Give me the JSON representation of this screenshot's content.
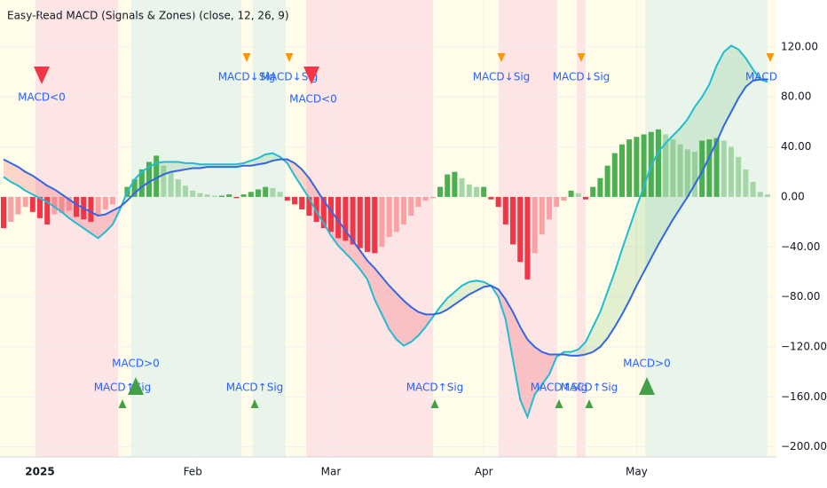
{
  "chart_data": {
    "type": "macd",
    "title": "Easy-Read MACD (Signals & Zones) (close, 12, 26, 9)",
    "categories": [
      null,
      null,
      null,
      null,
      null,
      "2025",
      null,
      null,
      null,
      null,
      null,
      null,
      null,
      null,
      null,
      null,
      null,
      null,
      null,
      null,
      null,
      null,
      null,
      null,
      null,
      null,
      "Feb",
      null,
      null,
      null,
      null,
      null,
      null,
      null,
      null,
      null,
      null,
      null,
      null,
      null,
      null,
      null,
      null,
      null,
      null,
      "Mar",
      null,
      null,
      null,
      null,
      null,
      null,
      null,
      null,
      null,
      null,
      null,
      null,
      null,
      null,
      null,
      null,
      null,
      null,
      null,
      null,
      "Apr",
      null,
      null,
      null,
      null,
      null,
      null,
      null,
      null,
      null,
      null,
      null,
      null,
      null,
      null,
      null,
      null,
      null,
      null,
      null,
      null,
      "May",
      null,
      null,
      null,
      null,
      null,
      null,
      null,
      null,
      null,
      null,
      null,
      null,
      null,
      null,
      null,
      null,
      null,
      null
    ],
    "histogram": [
      -25,
      -20,
      -14,
      -8,
      -12,
      -17,
      -22,
      -14,
      -13,
      -11,
      -16,
      -18,
      -20,
      -15,
      -10,
      -6,
      0,
      8,
      14,
      22,
      28,
      33,
      25,
      20,
      14,
      9,
      5,
      3,
      2,
      1,
      1,
      2,
      -1,
      2,
      4,
      6,
      8,
      7,
      4,
      -3,
      -6,
      -10,
      -15,
      -20,
      -25,
      -28,
      -33,
      -35,
      -38,
      -41,
      -44,
      -45,
      -40,
      -32,
      -28,
      -22,
      -15,
      -8,
      -3,
      -1,
      8,
      18,
      20,
      15,
      10,
      8,
      8,
      -2,
      -8,
      -22,
      -38,
      -52,
      -66,
      -45,
      -30,
      -18,
      -8,
      -3,
      5,
      3,
      -2,
      8,
      15,
      25,
      35,
      42,
      46,
      48,
      50,
      52,
      54,
      50,
      46,
      42,
      38,
      36,
      45,
      46,
      47,
      45,
      40,
      32,
      22,
      12,
      4,
      2
    ],
    "histogram_colors": [
      "#4caf50",
      "#a5d6a7",
      "#f23645",
      "#faa1a4"
    ],
    "series": [
      {
        "color": "#22bcd2",
        "values": [
          16,
          12,
          9,
          5,
          2,
          -1,
          -4,
          -8,
          -12,
          -17,
          -21,
          -25,
          -29,
          -33,
          -28,
          -22,
          -10,
          4,
          14,
          20,
          24,
          27,
          28,
          28,
          28,
          27,
          27,
          26,
          26,
          26,
          26,
          26,
          26,
          27,
          29,
          31,
          34,
          35,
          32,
          27,
          17,
          8,
          -1,
          -12,
          -21,
          -31,
          -39,
          -45,
          -51,
          -58,
          -66,
          -82,
          -94,
          -106,
          -114,
          -119,
          -116,
          -111,
          -104,
          -96,
          -88,
          -81,
          -76,
          -71,
          -68,
          -67,
          -68,
          -71,
          -80,
          -98,
          -130,
          -162,
          -176,
          -158,
          -150,
          -142,
          -128,
          -124,
          -124,
          -122,
          -116,
          -104,
          -92,
          -76,
          -60,
          -42,
          -25,
          -8,
          8,
          25,
          36,
          43,
          49,
          55,
          62,
          72,
          80,
          90,
          105,
          116,
          121,
          118,
          111,
          102,
          94,
          92
        ]
      },
      {
        "color": "#3366e6",
        "values": [
          30,
          27,
          24,
          20,
          17,
          13,
          9,
          6,
          2,
          -2,
          -6,
          -9,
          -12,
          -15,
          -14,
          -11,
          -8,
          -3,
          3,
          8,
          12,
          15,
          18,
          20,
          21,
          22,
          23,
          23,
          24,
          24,
          24,
          24,
          24,
          25,
          25,
          26,
          27,
          29,
          30,
          30,
          27,
          22,
          15,
          6,
          -3,
          -11,
          -19,
          -27,
          -35,
          -43,
          -51,
          -57,
          -64,
          -71,
          -77,
          -83,
          -88,
          -92,
          -94,
          -94,
          -93,
          -90,
          -86,
          -82,
          -78,
          -75,
          -72,
          -71,
          -74,
          -82,
          -92,
          -104,
          -114,
          -120,
          -124,
          -126,
          -126,
          -126,
          -127,
          -127,
          -126,
          -124,
          -120,
          -113,
          -104,
          -94,
          -83,
          -71,
          -60,
          -49,
          -38,
          -28,
          -18,
          -9,
          0,
          10,
          20,
          32,
          44,
          57,
          68,
          79,
          88,
          93,
          94,
          94
        ]
      }
    ],
    "fill_colors": [
      "rgba(76,175,80,0.16)",
      "rgba(242,54,69,0.2)"
    ],
    "annotations": [
      "MACD<0",
      "MACD↓Sig",
      "MACD↓Sig",
      "MACD<0",
      "MACD↓Sig",
      "MACD↓Sig",
      "MACD",
      "MACD↑Sig",
      "MACD>0",
      "MACD↑Sig",
      "MACD↑Sig",
      "MACD↑Sig",
      "MACD↑Sig",
      "MACD>0"
    ],
    "ylim": [
      -208,
      157.5
    ],
    "yticks": [
      {
        "value": 120,
        "label": "120.00"
      },
      {
        "value": 80,
        "label": "80.00"
      },
      {
        "value": 40,
        "label": "40.00"
      },
      {
        "value": 0,
        "label": "0.00"
      },
      {
        "value": -40,
        "label": "−40.00"
      },
      {
        "value": -80,
        "label": "−80.00"
      },
      {
        "value": -120,
        "label": "−120.00"
      },
      {
        "value": -160,
        "label": "−160.00"
      },
      {
        "value": -200,
        "label": "−200.00"
      }
    ],
    "grid": true
  }
}
